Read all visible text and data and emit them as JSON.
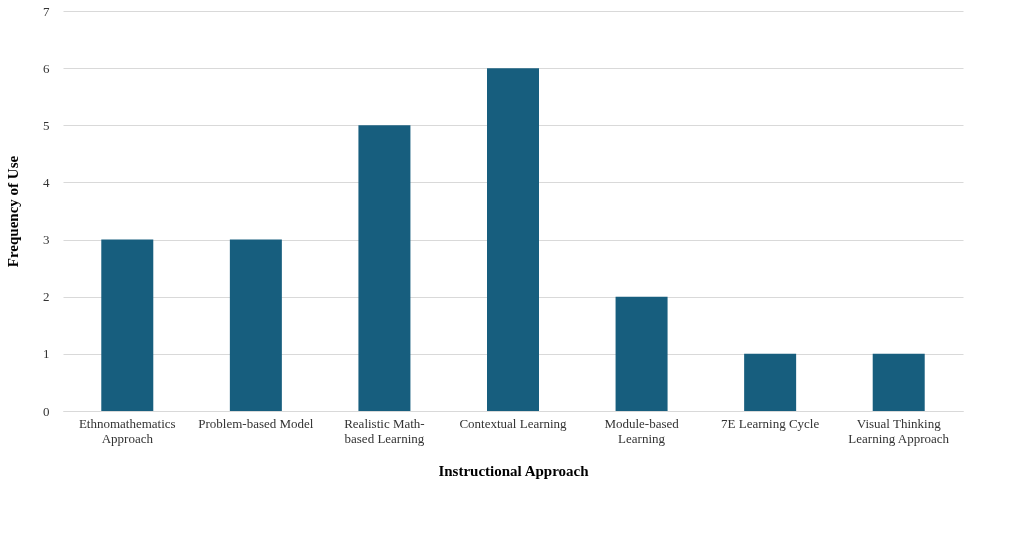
{
  "chart_data": {
    "type": "bar",
    "xlabel": "Instructional Approach",
    "ylabel": "Frequency of Use",
    "categories": [
      "Ethnomathematics Approach",
      "Problem-based Model",
      "Realistic Math-based Learning",
      "Contextual Learning",
      "Module-based Learning",
      "7E Learning Cycle",
      "Visual Thinking Learning Approach"
    ],
    "values": [
      3,
      3,
      5,
      6,
      2,
      1,
      1
    ],
    "color": "#175e7e",
    "ylim": [
      0,
      7
    ],
    "yticks": [
      0,
      1,
      2,
      3,
      4,
      5,
      6,
      7
    ],
    "grid": "y"
  }
}
